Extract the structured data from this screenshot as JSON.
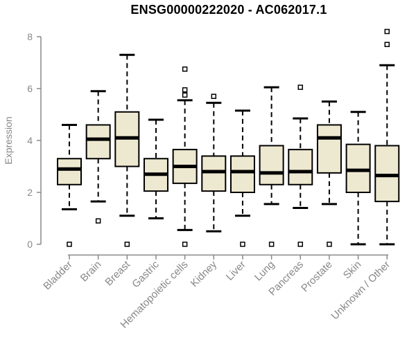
{
  "title": "ENSG00000222020 - AC062017.1",
  "colors": {
    "background": "#FFFFFF",
    "box_fill": "#EDE8D0",
    "box_border": "#000000",
    "median": "#000000",
    "whisker": "#000000",
    "outlier_fill": "#FFFFFF",
    "axis": "#888888",
    "axis_text": "#888888",
    "title_text": "#000000"
  },
  "chart_data": {
    "type": "boxplot",
    "title": "ENSG00000222020 - AC062017.1",
    "xlabel": "",
    "ylabel": "Expression",
    "ylim": [
      0,
      8.3
    ],
    "yticks": [
      0,
      2,
      4,
      6,
      8
    ],
    "grid": false,
    "legend": false,
    "categories": [
      "Bladder",
      "Brain",
      "Breast",
      "Gastric",
      "Hematopoietic cells",
      "Kidney",
      "Liver",
      "Lung",
      "Pancreas",
      "Prostate",
      "Skin",
      "Unknown / Other"
    ],
    "series": [
      {
        "category": "Bladder",
        "whisker_low": 1.35,
        "q1": 2.3,
        "median": 2.9,
        "q3": 3.3,
        "whisker_high": 4.6,
        "outliers": [
          0
        ]
      },
      {
        "category": "Brain",
        "whisker_low": 1.65,
        "q1": 3.3,
        "median": 4.05,
        "q3": 4.6,
        "whisker_high": 5.9,
        "outliers": [
          0.9
        ]
      },
      {
        "category": "Breast",
        "whisker_low": 1.1,
        "q1": 3.0,
        "median": 4.1,
        "q3": 5.1,
        "whisker_high": 7.3,
        "outliers": [
          0
        ]
      },
      {
        "category": "Gastric",
        "whisker_low": 1.0,
        "q1": 2.05,
        "median": 2.7,
        "q3": 3.3,
        "whisker_high": 4.8,
        "outliers": []
      },
      {
        "category": "Hematopoietic cells",
        "whisker_low": 0.55,
        "q1": 2.35,
        "median": 3.0,
        "q3": 3.65,
        "whisker_high": 5.55,
        "outliers": [
          6.75,
          5.95,
          5.75,
          0
        ]
      },
      {
        "category": "Kidney",
        "whisker_low": 0.5,
        "q1": 2.05,
        "median": 2.8,
        "q3": 3.4,
        "whisker_high": 5.45,
        "outliers": [
          5.7
        ]
      },
      {
        "category": "Liver",
        "whisker_low": 1.1,
        "q1": 2.0,
        "median": 2.8,
        "q3": 3.4,
        "whisker_high": 5.15,
        "outliers": [
          0
        ]
      },
      {
        "category": "Lung",
        "whisker_low": 1.55,
        "q1": 2.3,
        "median": 2.75,
        "q3": 3.8,
        "whisker_high": 6.05,
        "outliers": [
          0
        ]
      },
      {
        "category": "Pancreas",
        "whisker_low": 1.4,
        "q1": 2.3,
        "median": 2.8,
        "q3": 3.65,
        "whisker_high": 4.85,
        "outliers": [
          6.05,
          0
        ]
      },
      {
        "category": "Prostate",
        "whisker_low": 1.55,
        "q1": 2.75,
        "median": 4.1,
        "q3": 4.6,
        "whisker_high": 5.5,
        "outliers": [
          0
        ]
      },
      {
        "category": "Skin",
        "whisker_low": 0.0,
        "q1": 2.0,
        "median": 2.85,
        "q3": 3.85,
        "whisker_high": 5.1,
        "outliers": []
      },
      {
        "category": "Unknown / Other",
        "whisker_low": 0.0,
        "q1": 1.65,
        "median": 2.65,
        "q3": 3.8,
        "whisker_high": 6.9,
        "outliers": [
          8.2,
          7.7
        ]
      }
    ]
  }
}
